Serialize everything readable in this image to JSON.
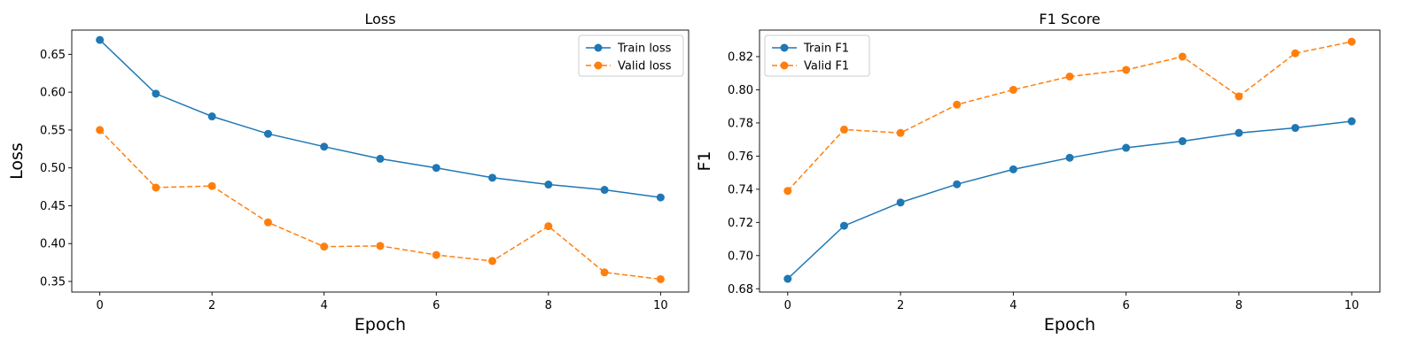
{
  "chart_data": [
    {
      "type": "line",
      "title": "Loss",
      "xlabel": "Epoch",
      "ylabel": "Loss",
      "x": [
        0,
        1,
        2,
        3,
        4,
        5,
        6,
        7,
        8,
        9,
        10
      ],
      "xlim": [
        -0.5,
        10.5
      ],
      "ylim": [
        0.336,
        0.682
      ],
      "xticks": [
        0,
        2,
        4,
        6,
        8,
        10
      ],
      "yticks": [
        0.35,
        0.4,
        0.45,
        0.5,
        0.55,
        0.6,
        0.65
      ],
      "ytick_labels": [
        "0.35",
        "0.40",
        "0.45",
        "0.50",
        "0.55",
        "0.60",
        "0.65"
      ],
      "legend": "top-right",
      "grid": false,
      "series": [
        {
          "name": "Train loss",
          "color": "#1f77b4",
          "style": "solid",
          "values": [
            0.669,
            0.598,
            0.568,
            0.545,
            0.528,
            0.512,
            0.5,
            0.487,
            0.478,
            0.471,
            0.461
          ]
        },
        {
          "name": "Valid loss",
          "color": "#ff7f0e",
          "style": "dashed",
          "values": [
            0.55,
            0.474,
            0.476,
            0.428,
            0.396,
            0.397,
            0.385,
            0.377,
            0.423,
            0.362,
            0.353
          ]
        }
      ]
    },
    {
      "type": "line",
      "title": "F1 Score",
      "xlabel": "Epoch",
      "ylabel": "F1",
      "x": [
        0,
        1,
        2,
        3,
        4,
        5,
        6,
        7,
        8,
        9,
        10
      ],
      "xlim": [
        -0.5,
        10.5
      ],
      "ylim": [
        0.678,
        0.836
      ],
      "xticks": [
        0,
        2,
        4,
        6,
        8,
        10
      ],
      "yticks": [
        0.68,
        0.7,
        0.72,
        0.74,
        0.76,
        0.78,
        0.8,
        0.82
      ],
      "ytick_labels": [
        "0.68",
        "0.70",
        "0.72",
        "0.74",
        "0.76",
        "0.78",
        "0.80",
        "0.82"
      ],
      "legend": "top-left",
      "grid": false,
      "series": [
        {
          "name": "Train F1",
          "color": "#1f77b4",
          "style": "solid",
          "values": [
            0.686,
            0.718,
            0.732,
            0.743,
            0.752,
            0.759,
            0.765,
            0.769,
            0.774,
            0.777,
            0.781
          ]
        },
        {
          "name": "Valid F1",
          "color": "#ff7f0e",
          "style": "dashed",
          "values": [
            0.739,
            0.776,
            0.774,
            0.791,
            0.8,
            0.808,
            0.812,
            0.82,
            0.796,
            0.822,
            0.829
          ]
        }
      ]
    }
  ]
}
